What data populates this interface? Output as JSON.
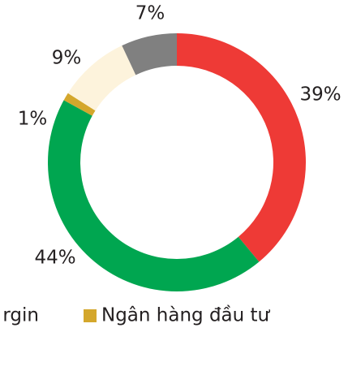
{
  "chart_data": {
    "type": "pie",
    "values": [
      39,
      44,
      1,
      9,
      7
    ],
    "value_labels": [
      "39%",
      "44%",
      "1%",
      "9%",
      "7%"
    ],
    "colors": [
      "#ee3a36",
      "#00a650",
      "#d4a72c",
      "#fdf3dc",
      "#808080"
    ],
    "legend": [
      {
        "label": "rgin"
      },
      {
        "label": "Ngân hàng đầu tư",
        "color": "#d4a72c"
      }
    ]
  }
}
